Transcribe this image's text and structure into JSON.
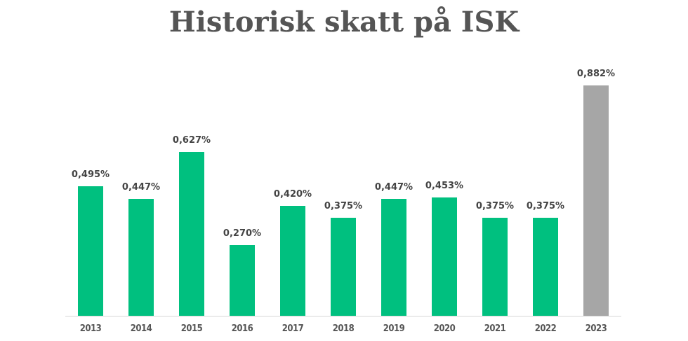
{
  "title": "Historisk skatt på ISK",
  "colors": {
    "green": "#00c07f",
    "gray": "#a6a6a6",
    "text": "#555555"
  },
  "chart_data": {
    "type": "bar",
    "title": "Historisk skatt på ISK",
    "xlabel": "",
    "ylabel": "",
    "categories": [
      "2013",
      "2014",
      "2015",
      "2016",
      "2017",
      "2018",
      "2019",
      "2020",
      "2021",
      "2022",
      "2023"
    ],
    "values": [
      0.495,
      0.447,
      0.627,
      0.27,
      0.42,
      0.375,
      0.447,
      0.453,
      0.375,
      0.375,
      0.882
    ],
    "labels": [
      "0,495%",
      "0,447%",
      "0,627%",
      "0,270%",
      "0,420%",
      "0,375%",
      "0,447%",
      "0,453%",
      "0,375%",
      "0,375%",
      "0,882%"
    ],
    "bar_colors": [
      "#00c07f",
      "#00c07f",
      "#00c07f",
      "#00c07f",
      "#00c07f",
      "#00c07f",
      "#00c07f",
      "#00c07f",
      "#00c07f",
      "#00c07f",
      "#a6a6a6"
    ],
    "ylim": [
      0,
      0.9
    ],
    "grid": false,
    "legend": null
  }
}
